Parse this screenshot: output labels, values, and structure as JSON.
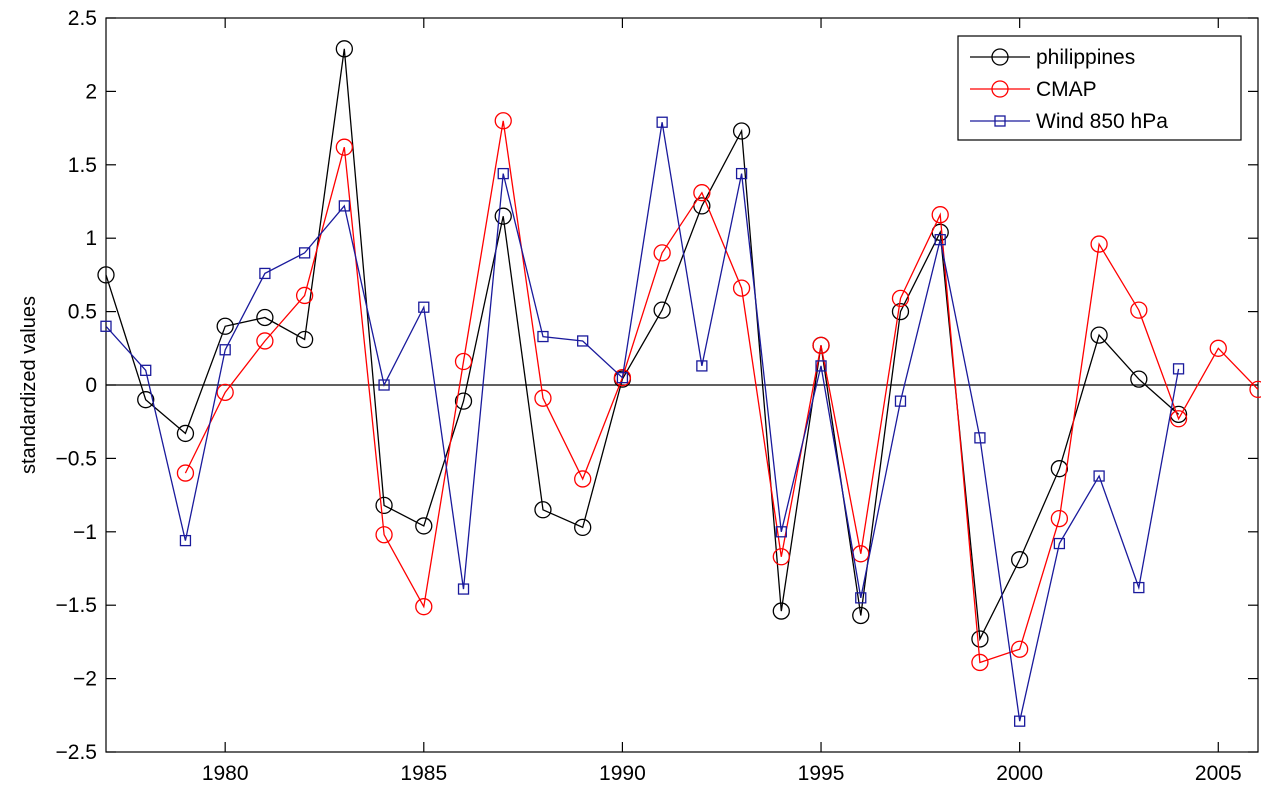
{
  "chart_data": {
    "type": "line",
    "title": "",
    "xlabel": "",
    "ylabel": "standardized values",
    "xlim": [
      1977,
      2006
    ],
    "ylim": [
      -2.5,
      2.5
    ],
    "xticks": [
      1980,
      1985,
      1990,
      1995,
      2000,
      2005
    ],
    "yticks": [
      -2.5,
      -2,
      -1.5,
      -1,
      -0.5,
      0,
      0.5,
      1,
      1.5,
      2,
      2.5
    ],
    "grid": false,
    "zero_line": true,
    "legend_position": "top-right",
    "series": [
      {
        "name": "philippines",
        "color": "#000000",
        "marker": "circle",
        "x": [
          1977,
          1978,
          1979,
          1980,
          1981,
          1982,
          1983,
          1984,
          1985,
          1986,
          1987,
          1988,
          1989,
          1990,
          1991,
          1992,
          1993,
          1994,
          1995,
          1996,
          1997,
          1998,
          1999,
          2000,
          2001,
          2002,
          2003,
          2004
        ],
        "y": [
          0.75,
          -0.1,
          -0.33,
          0.4,
          0.46,
          0.31,
          2.29,
          -0.82,
          -0.96,
          -0.11,
          1.15,
          -0.85,
          -0.97,
          0.04,
          0.51,
          1.22,
          1.73,
          -1.54,
          0.27,
          -1.57,
          0.5,
          1.04,
          -1.73,
          -1.19,
          -0.57,
          0.34,
          0.04,
          -0.2
        ]
      },
      {
        "name": "CMAP",
        "color": "#ff0000",
        "marker": "circle",
        "x": [
          1979,
          1980,
          1981,
          1982,
          1983,
          1984,
          1985,
          1986,
          1987,
          1988,
          1989,
          1990,
          1991,
          1992,
          1993,
          1994,
          1995,
          1996,
          1997,
          1998,
          1999,
          2000,
          2001,
          2002,
          2003,
          2004,
          2005,
          2006
        ],
        "y": [
          -0.6,
          -0.05,
          0.3,
          0.61,
          1.62,
          -1.02,
          -1.51,
          0.16,
          1.8,
          -0.09,
          -0.64,
          0.05,
          0.9,
          1.31,
          0.66,
          -1.17,
          0.27,
          -1.15,
          0.59,
          1.16,
          -1.89,
          -1.8,
          -0.91,
          0.96,
          0.51,
          -0.23,
          0.25,
          -0.03
        ]
      },
      {
        "name": "Wind 850 hPa",
        "color": "#1a1a9c",
        "marker": "square",
        "x": [
          1977,
          1978,
          1979,
          1980,
          1981,
          1982,
          1983,
          1984,
          1985,
          1986,
          1987,
          1988,
          1989,
          1990,
          1991,
          1992,
          1993,
          1994,
          1995,
          1996,
          1997,
          1998,
          1999,
          2000,
          2001,
          2002,
          2003,
          2004
        ],
        "y": [
          0.4,
          0.1,
          -1.06,
          0.24,
          0.76,
          0.9,
          1.22,
          0.0,
          0.53,
          -1.39,
          1.44,
          0.33,
          0.3,
          0.05,
          1.79,
          0.13,
          1.44,
          -1.0,
          0.13,
          -1.45,
          -0.11,
          0.99,
          -0.36,
          -2.29,
          -1.08,
          -0.62,
          -1.38,
          0.11
        ]
      }
    ]
  }
}
